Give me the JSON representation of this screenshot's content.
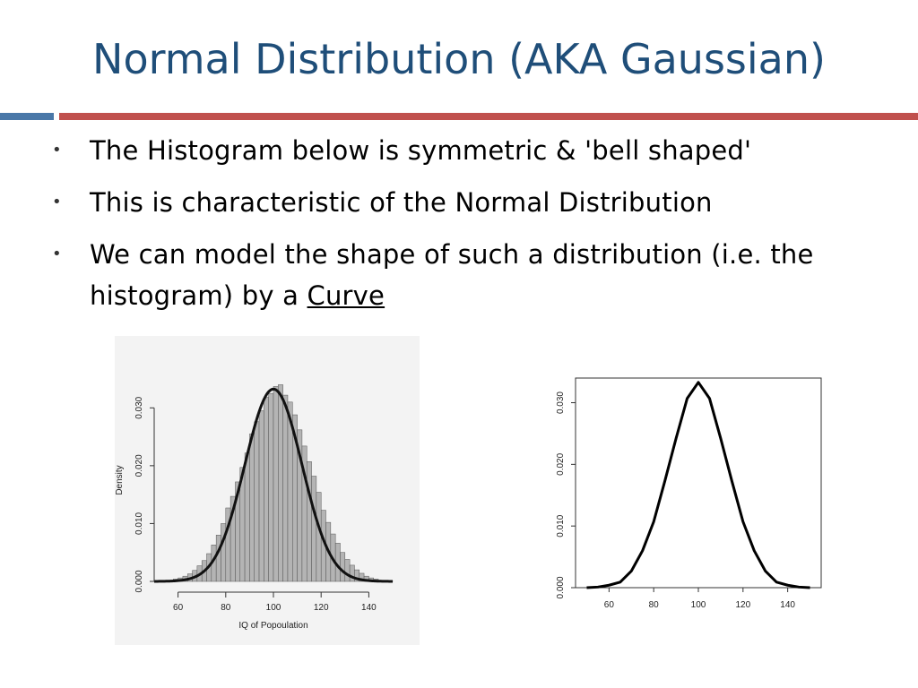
{
  "slide": {
    "title": "Normal Distribution (AKA Gaussian)",
    "accent_colors": {
      "title": "#1f4e79",
      "rule_left": "#4a78a8",
      "rule_right": "#c0504d"
    },
    "bullets": [
      {
        "text": "The Histogram below is symmetric & 'bell shaped'"
      },
      {
        "text": "This is characteristic of the Normal Distribution"
      },
      {
        "text_before": "We can model the shape of such a distribution (i.e. the histogram) by a ",
        "underlined": "Curve"
      }
    ],
    "bullet_glyph": "•"
  },
  "chart_data": [
    {
      "type": "bar",
      "overlay": "density-curve",
      "title": "",
      "xlabel": "IQ of Popoulation",
      "ylabel": "Density",
      "xlim": [
        50,
        150
      ],
      "ylim": [
        0,
        0.035
      ],
      "x_ticks": [
        "60",
        "80",
        "100",
        "120",
        "140"
      ],
      "y_ticks": [
        "0.000",
        "0.010",
        "0.020",
        "0.030"
      ],
      "bin_width": 2,
      "bins_start": [
        50,
        52,
        54,
        56,
        58,
        60,
        62,
        64,
        66,
        68,
        70,
        72,
        74,
        76,
        78,
        80,
        82,
        84,
        86,
        88,
        90,
        92,
        94,
        96,
        98,
        100,
        102,
        104,
        106,
        108,
        110,
        112,
        114,
        116,
        118,
        120,
        122,
        124,
        126,
        128,
        130,
        132,
        134,
        136,
        138,
        140,
        142,
        144,
        146,
        148
      ],
      "values": [
        0.0,
        0.0001,
        0.0001,
        0.0002,
        0.0004,
        0.0006,
        0.0009,
        0.0013,
        0.0019,
        0.0027,
        0.0036,
        0.0048,
        0.0063,
        0.008,
        0.01,
        0.0127,
        0.0147,
        0.0172,
        0.0197,
        0.0222,
        0.0255,
        0.0276,
        0.0295,
        0.0318,
        0.0325,
        0.0337,
        0.034,
        0.0322,
        0.031,
        0.0288,
        0.0262,
        0.0234,
        0.0207,
        0.0182,
        0.0154,
        0.0123,
        0.0102,
        0.0082,
        0.0066,
        0.005,
        0.0038,
        0.0028,
        0.002,
        0.0014,
        0.0009,
        0.0006,
        0.0004,
        0.0002,
        0.0001,
        0.0001
      ],
      "grid": false
    },
    {
      "type": "line",
      "title": "",
      "xlabel": "",
      "ylabel": "",
      "xlim": [
        45,
        155
      ],
      "ylim": [
        0,
        0.034
      ],
      "x_ticks": [
        "60",
        "80",
        "100",
        "120",
        "140"
      ],
      "y_ticks": [
        "0.000",
        "0.010",
        "0.020",
        "0.030"
      ],
      "series": [
        {
          "x": [
            50,
            55,
            60,
            65,
            70,
            75,
            80,
            85,
            90,
            95,
            100,
            105,
            110,
            115,
            120,
            125,
            130,
            135,
            140,
            145,
            150
          ],
          "values": [
            0.0,
            0.0001,
            0.0004,
            0.0009,
            0.0027,
            0.006,
            0.0107,
            0.0173,
            0.0242,
            0.0307,
            0.0333,
            0.0307,
            0.0242,
            0.0173,
            0.0107,
            0.006,
            0.0027,
            0.0009,
            0.0004,
            0.0001,
            0.0
          ]
        }
      ],
      "grid": false
    }
  ]
}
